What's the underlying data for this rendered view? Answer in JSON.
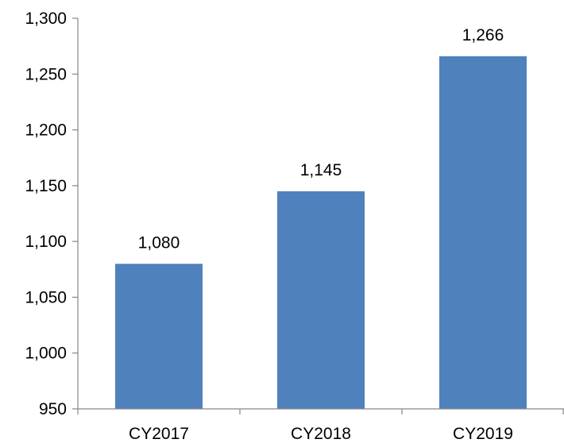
{
  "chart_data": {
    "type": "bar",
    "title": "",
    "xlabel": "",
    "ylabel": "",
    "categories": [
      "CY2017",
      "CY2018",
      "CY2019"
    ],
    "values": [
      1080,
      1145,
      1266
    ],
    "data_labels": [
      "1,080",
      "1,145",
      "1,266"
    ],
    "ylim": [
      950,
      1300
    ],
    "y_ticks": [
      950,
      1000,
      1050,
      1100,
      1150,
      1200,
      1250,
      1300
    ],
    "y_tick_labels": [
      "950",
      "1,000",
      "1,050",
      "1,100",
      "1,150",
      "1,200",
      "1,250",
      "1,300"
    ],
    "grid": false,
    "legend": "none",
    "colors": {
      "bar": "#4f81bd",
      "axis": "#868686",
      "text": "#000000"
    }
  }
}
